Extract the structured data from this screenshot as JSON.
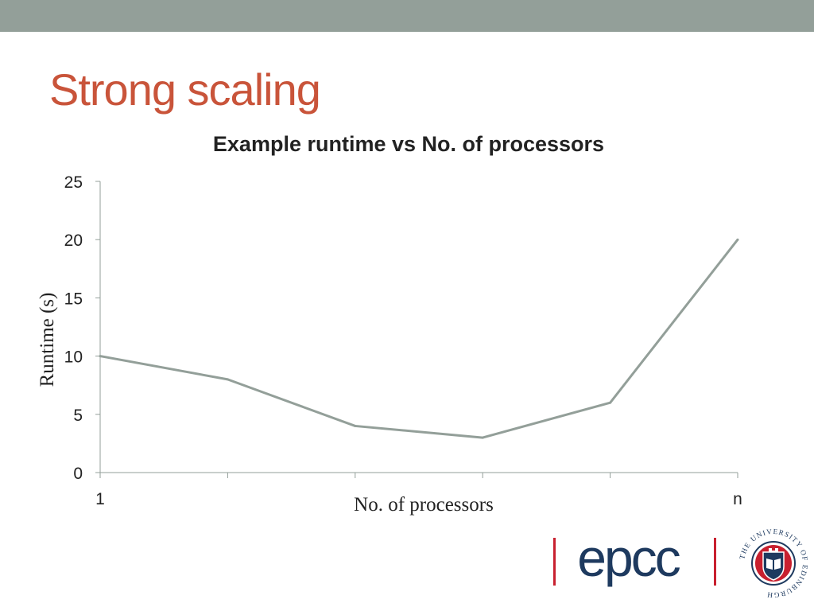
{
  "slide": {
    "title": "Strong scaling",
    "colors": {
      "top_bar": "#939f99",
      "title": "#c9543a",
      "line": "#939f99",
      "text": "#222222"
    }
  },
  "chart_data": {
    "type": "line",
    "title": "Example runtime vs No. of processors",
    "xlabel": "No. of processors",
    "ylabel": "Runtime (s)",
    "x": [
      "1",
      "",
      "",
      "",
      "",
      "n"
    ],
    "series": [
      {
        "values": [
          10,
          8,
          4,
          3,
          6,
          20
        ]
      }
    ],
    "ylim": [
      0,
      25
    ],
    "yticks": [
      0,
      5,
      10,
      15,
      20,
      25
    ],
    "grid": false,
    "legend": "none"
  },
  "logos": {
    "epcc": {
      "text": "epcc",
      "color": "#1e3a5f",
      "bar_color": "#c8202f"
    },
    "university": {
      "text": "THE UNIVERSITY OF EDINBURGH",
      "color": "#1e3a5f",
      "seal_red": "#c8202f"
    }
  }
}
